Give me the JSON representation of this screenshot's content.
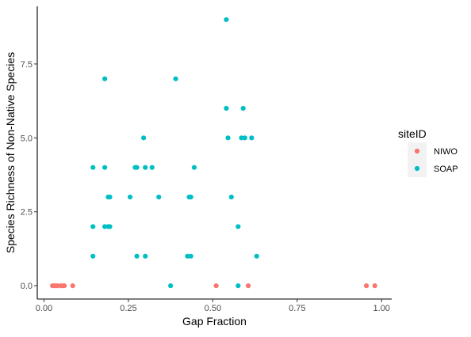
{
  "chart_data": {
    "type": "scatter",
    "title": "",
    "xlabel": "Gap Fraction",
    "ylabel": "Species Richness of Non-Native Species",
    "xlim": [
      -0.02,
      1.03
    ],
    "ylim": [
      -0.45,
      9.45
    ],
    "xticks": [
      0.0,
      0.25,
      0.5,
      0.75,
      1.0
    ],
    "xtick_labels": [
      "0.00",
      "0.25",
      "0.50",
      "0.75",
      "1.00"
    ],
    "yticks": [
      0.0,
      2.5,
      5.0,
      7.5
    ],
    "ytick_labels": [
      "0.0",
      "2.5",
      "5.0",
      "7.5"
    ],
    "grid": false,
    "legend": {
      "title": "siteID",
      "placement": "right",
      "entries": [
        {
          "name": "NIWO",
          "color": "#F8766D"
        },
        {
          "name": "SOAP",
          "color": "#00BFC4"
        }
      ]
    },
    "series": [
      {
        "name": "NIWO",
        "color": "#F8766D",
        "points": [
          [
            0.025,
            0
          ],
          [
            0.03,
            0
          ],
          [
            0.035,
            0
          ],
          [
            0.04,
            0
          ],
          [
            0.05,
            0
          ],
          [
            0.055,
            0
          ],
          [
            0.06,
            0
          ],
          [
            0.085,
            0
          ],
          [
            0.51,
            0
          ],
          [
            0.605,
            0
          ],
          [
            0.955,
            0
          ],
          [
            0.98,
            0
          ]
        ]
      },
      {
        "name": "SOAP",
        "color": "#00BFC4",
        "points": [
          [
            0.54,
            9
          ],
          [
            0.18,
            7
          ],
          [
            0.39,
            7
          ],
          [
            0.54,
            6
          ],
          [
            0.59,
            6
          ],
          [
            0.295,
            5
          ],
          [
            0.545,
            5
          ],
          [
            0.585,
            5
          ],
          [
            0.595,
            5
          ],
          [
            0.615,
            5
          ],
          [
            0.145,
            4
          ],
          [
            0.18,
            4
          ],
          [
            0.27,
            4
          ],
          [
            0.275,
            4
          ],
          [
            0.3,
            4
          ],
          [
            0.32,
            4
          ],
          [
            0.445,
            4
          ],
          [
            0.19,
            3
          ],
          [
            0.195,
            3
          ],
          [
            0.255,
            3
          ],
          [
            0.34,
            3
          ],
          [
            0.43,
            3
          ],
          [
            0.435,
            3
          ],
          [
            0.555,
            3
          ],
          [
            0.145,
            2
          ],
          [
            0.18,
            2
          ],
          [
            0.19,
            2
          ],
          [
            0.195,
            2
          ],
          [
            0.575,
            2
          ],
          [
            0.145,
            1
          ],
          [
            0.275,
            1
          ],
          [
            0.3,
            1
          ],
          [
            0.425,
            1
          ],
          [
            0.435,
            1
          ],
          [
            0.63,
            1
          ],
          [
            0.375,
            0
          ],
          [
            0.575,
            0
          ]
        ]
      }
    ]
  }
}
